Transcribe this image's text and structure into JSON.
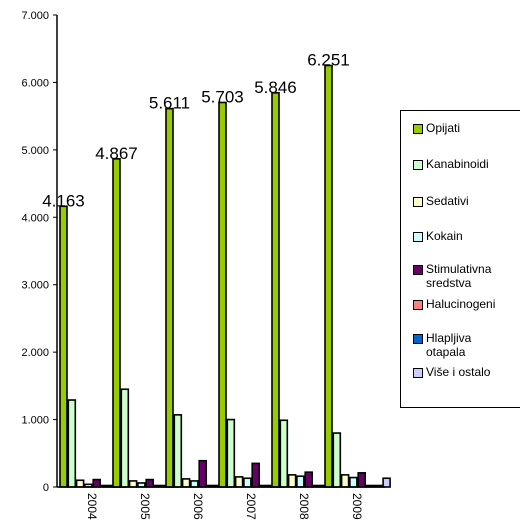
{
  "chart_data": {
    "type": "bar",
    "categories": [
      "2004",
      "2005",
      "2006",
      "2007",
      "2008",
      "2009"
    ],
    "ylim": [
      0,
      7000
    ],
    "yticks": [
      "0",
      "1.000",
      "2.000",
      "3.000",
      "4.000",
      "5.000",
      "6.000",
      "7.000"
    ],
    "title": "",
    "xlabel": "",
    "ylabel": "",
    "legend_position": "right",
    "data_labels": [
      "4.163",
      "4.867",
      "5.611",
      "5.703",
      "5.846",
      "6.251"
    ],
    "series": [
      {
        "name": "Opijati",
        "color": "#99cc00",
        "values": [
          4163,
          4867,
          5611,
          5703,
          5846,
          6251
        ]
      },
      {
        "name": "Kanabinoidi",
        "color": "#ccffcc",
        "values": [
          1290,
          1450,
          1070,
          1000,
          990,
          800
        ]
      },
      {
        "name": "Sedativi",
        "color": "#ffffcc",
        "values": [
          100,
          90,
          120,
          150,
          180,
          180
        ]
      },
      {
        "name": "Kokain",
        "color": "#ccffff",
        "values": [
          40,
          60,
          90,
          130,
          160,
          140
        ]
      },
      {
        "name": "Stimulativna sredstva",
        "color": "#660066",
        "values": [
          110,
          110,
          390,
          350,
          220,
          210
        ]
      },
      {
        "name": "Halucinogeni",
        "color": "#ff8080",
        "values": [
          10,
          10,
          10,
          10,
          10,
          10
        ]
      },
      {
        "name": "Hlapljiva otapala",
        "color": "#0066cc",
        "values": [
          10,
          10,
          10,
          10,
          10,
          10
        ]
      },
      {
        "name": "Više i ostalo",
        "color": "#ccccff",
        "values": [
          60,
          70,
          90,
          100,
          120,
          130
        ]
      }
    ]
  }
}
